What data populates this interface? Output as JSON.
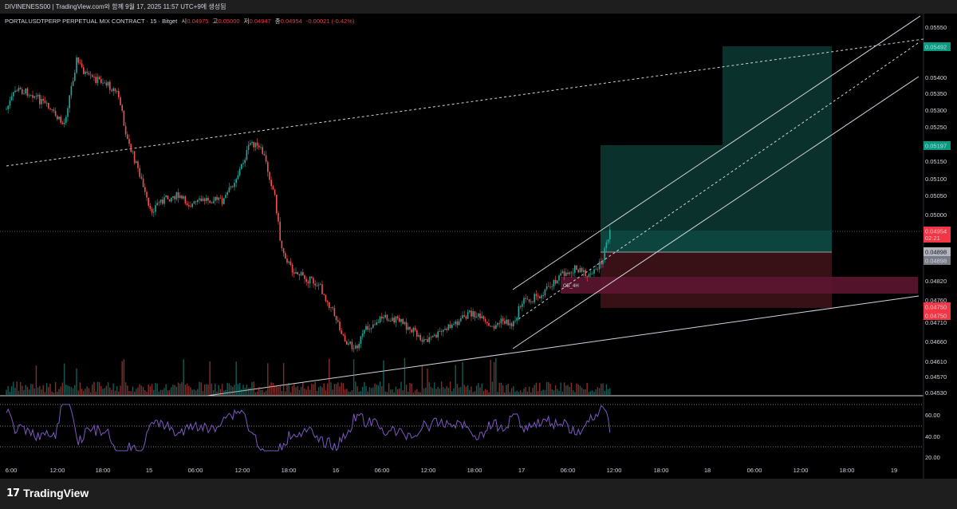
{
  "title_bar": "DIVINENESS00 | TradingView.com와 함께 9월 17, 2025 11:57 UTC+9에 생성됨",
  "legend": {
    "symbol": "PORTALUSDTPERP PERPETUAL MIX CONTRACT · 15 · Bitget",
    "open_label": "시",
    "open": "0.04975",
    "high_label": "고",
    "high": "0.05000",
    "low_label": "저",
    "low": "0.04947",
    "close_label": "종",
    "close": "0.04954",
    "change": "-0.00021 (-0.42%)"
  },
  "price_axis": [
    "0.05550",
    "0.05450",
    "0.05400",
    "0.05350",
    "0.05300",
    "0.05250",
    "0.05150",
    "0.05100",
    "0.05050",
    "0.05000",
    "0.04820",
    "0.04710",
    "0.04660",
    "0.04610",
    "0.04570",
    "0.04530"
  ],
  "price_axis_partial": "0.04760",
  "rsi_axis": [
    "60.00",
    "40.00",
    "20.00"
  ],
  "time_axis": [
    "6:00",
    "12:00",
    "18:00",
    "15",
    "06:00",
    "12:00",
    "18:00",
    "16",
    "06:00",
    "12:00",
    "18:00",
    "17",
    "06:00",
    "12:00",
    "18:00",
    "18",
    "06:00",
    "12:00",
    "18:00",
    "19"
  ],
  "price_badges": [
    {
      "text": "0.05492",
      "color": "#089981"
    },
    {
      "text": "0.05197",
      "color": "#089981"
    },
    {
      "text": "0.04954",
      "sub": "02:21",
      "color": "#f23645"
    },
    {
      "text": "0.04898",
      "color": "#b2b5be"
    },
    {
      "text": "0.04898",
      "color": "#787b86"
    },
    {
      "text": "0.04750",
      "color": "#f23645"
    },
    {
      "text": "0.04750",
      "color": "#f23645"
    }
  ],
  "annotation": "OB_4H",
  "footer": {
    "logo_mark": "17",
    "logo_name": "TradingView"
  },
  "colors": {
    "up": "#26a69a",
    "down": "#ef5350",
    "target_zone": "#0c3d36",
    "stop_zone": "#3d1216",
    "ob_zone": "#5c1630",
    "rsi": "#7e57c2"
  }
}
